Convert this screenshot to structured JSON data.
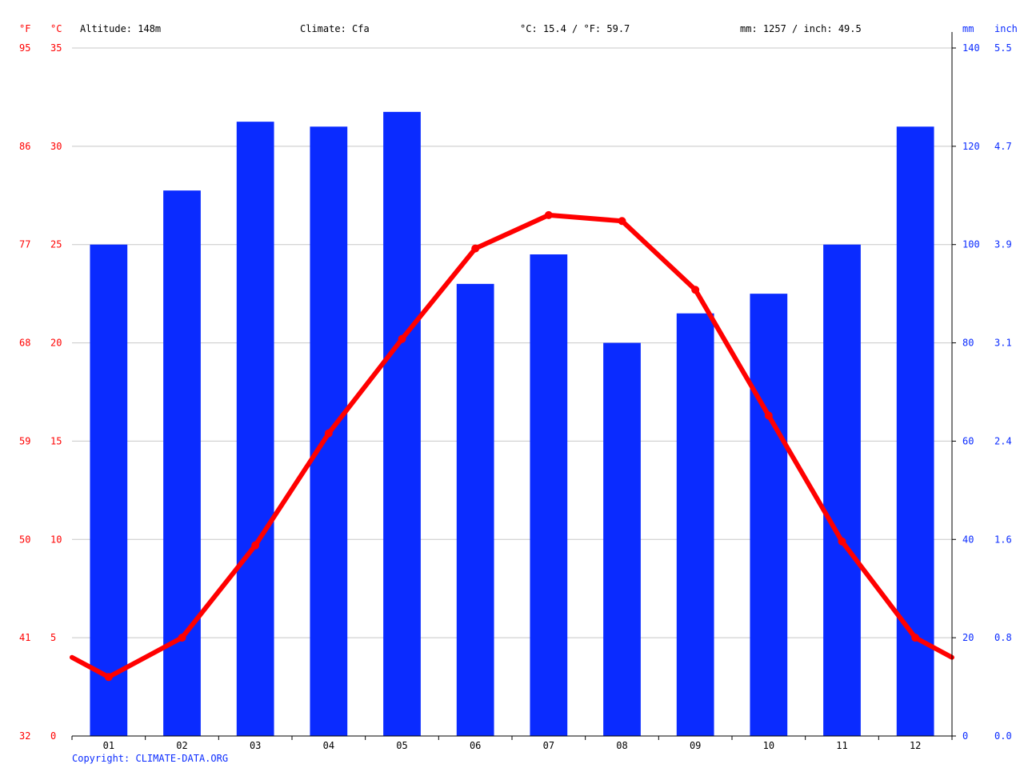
{
  "header": {
    "altitude": "Altitude: 148m",
    "climate": "Climate: Cfa",
    "avg_temp": "°C: 15.4 / °F: 59.7",
    "avg_precip": "mm: 1257 / inch: 49.5"
  },
  "axis_units": {
    "fahrenheit": "°F",
    "celsius": "°C",
    "mm": "mm",
    "inch": "inch"
  },
  "copyright": "Copyright: CLIMATE-DATA.ORG",
  "colors": {
    "temperature": "#ff0000",
    "precipitation": "#0a2bff",
    "grid": "#c8c8c8",
    "axis": "#000000"
  },
  "chart_data": {
    "type": "bar",
    "categories": [
      "01",
      "02",
      "03",
      "04",
      "05",
      "06",
      "07",
      "08",
      "09",
      "10",
      "11",
      "12"
    ],
    "series": [
      {
        "type": "bar",
        "axis": "right",
        "unit": "mm",
        "values": [
          100,
          111,
          125,
          124,
          127,
          92,
          98,
          80,
          86,
          90,
          100,
          124
        ]
      },
      {
        "type": "line",
        "axis": "left",
        "unit": "°C",
        "values": [
          3.0,
          5.0,
          9.7,
          15.4,
          20.2,
          24.8,
          26.5,
          26.2,
          22.7,
          16.3,
          9.9,
          5.0
        ],
        "edge_values": [
          4.0,
          4.0
        ]
      }
    ],
    "y_left_celsius": {
      "ticks": [
        0,
        5,
        10,
        15,
        20,
        25,
        30,
        35
      ],
      "range": [
        0,
        35
      ]
    },
    "y_left_fahrenheit": {
      "ticks": [
        "32",
        "41",
        "50",
        "59",
        "68",
        "77",
        "86",
        "95"
      ]
    },
    "y_right_mm": {
      "ticks": [
        0,
        20,
        40,
        60,
        80,
        100,
        120,
        140
      ],
      "range": [
        0,
        140
      ]
    },
    "y_right_inch": {
      "ticks": [
        "0.0",
        "0.8",
        "1.6",
        "2.4",
        "3.1",
        "3.9",
        "4.7",
        "5.5"
      ]
    },
    "grid": true
  }
}
